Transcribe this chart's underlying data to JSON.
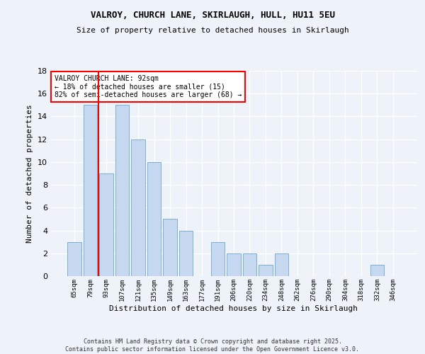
{
  "title1": "VALROY, CHURCH LANE, SKIRLAUGH, HULL, HU11 5EU",
  "title2": "Size of property relative to detached houses in Skirlaugh",
  "xlabel": "Distribution of detached houses by size in Skirlaugh",
  "ylabel": "Number of detached properties",
  "categories": [
    "65sqm",
    "79sqm",
    "93sqm",
    "107sqm",
    "121sqm",
    "135sqm",
    "149sqm",
    "163sqm",
    "177sqm",
    "191sqm",
    "206sqm",
    "220sqm",
    "234sqm",
    "248sqm",
    "262sqm",
    "276sqm",
    "290sqm",
    "304sqm",
    "318sqm",
    "332sqm",
    "346sqm"
  ],
  "values": [
    3,
    15,
    9,
    15,
    12,
    10,
    5,
    4,
    0,
    3,
    2,
    2,
    1,
    2,
    0,
    0,
    0,
    0,
    0,
    1,
    0
  ],
  "bar_color": "#c5d8f0",
  "bar_edge_color": "#7aafd4",
  "vline_color": "red",
  "annotation_text": "VALROY CHURCH LANE: 92sqm\n← 18% of detached houses are smaller (15)\n82% of semi-detached houses are larger (68) →",
  "annotation_box_color": "white",
  "annotation_box_edge_color": "red",
  "ylim": [
    0,
    18
  ],
  "yticks": [
    0,
    2,
    4,
    6,
    8,
    10,
    12,
    14,
    16,
    18
  ],
  "footer1": "Contains HM Land Registry data © Crown copyright and database right 2025.",
  "footer2": "Contains public sector information licensed under the Open Government Licence v3.0.",
  "background_color": "#eef2f9",
  "grid_color": "white"
}
